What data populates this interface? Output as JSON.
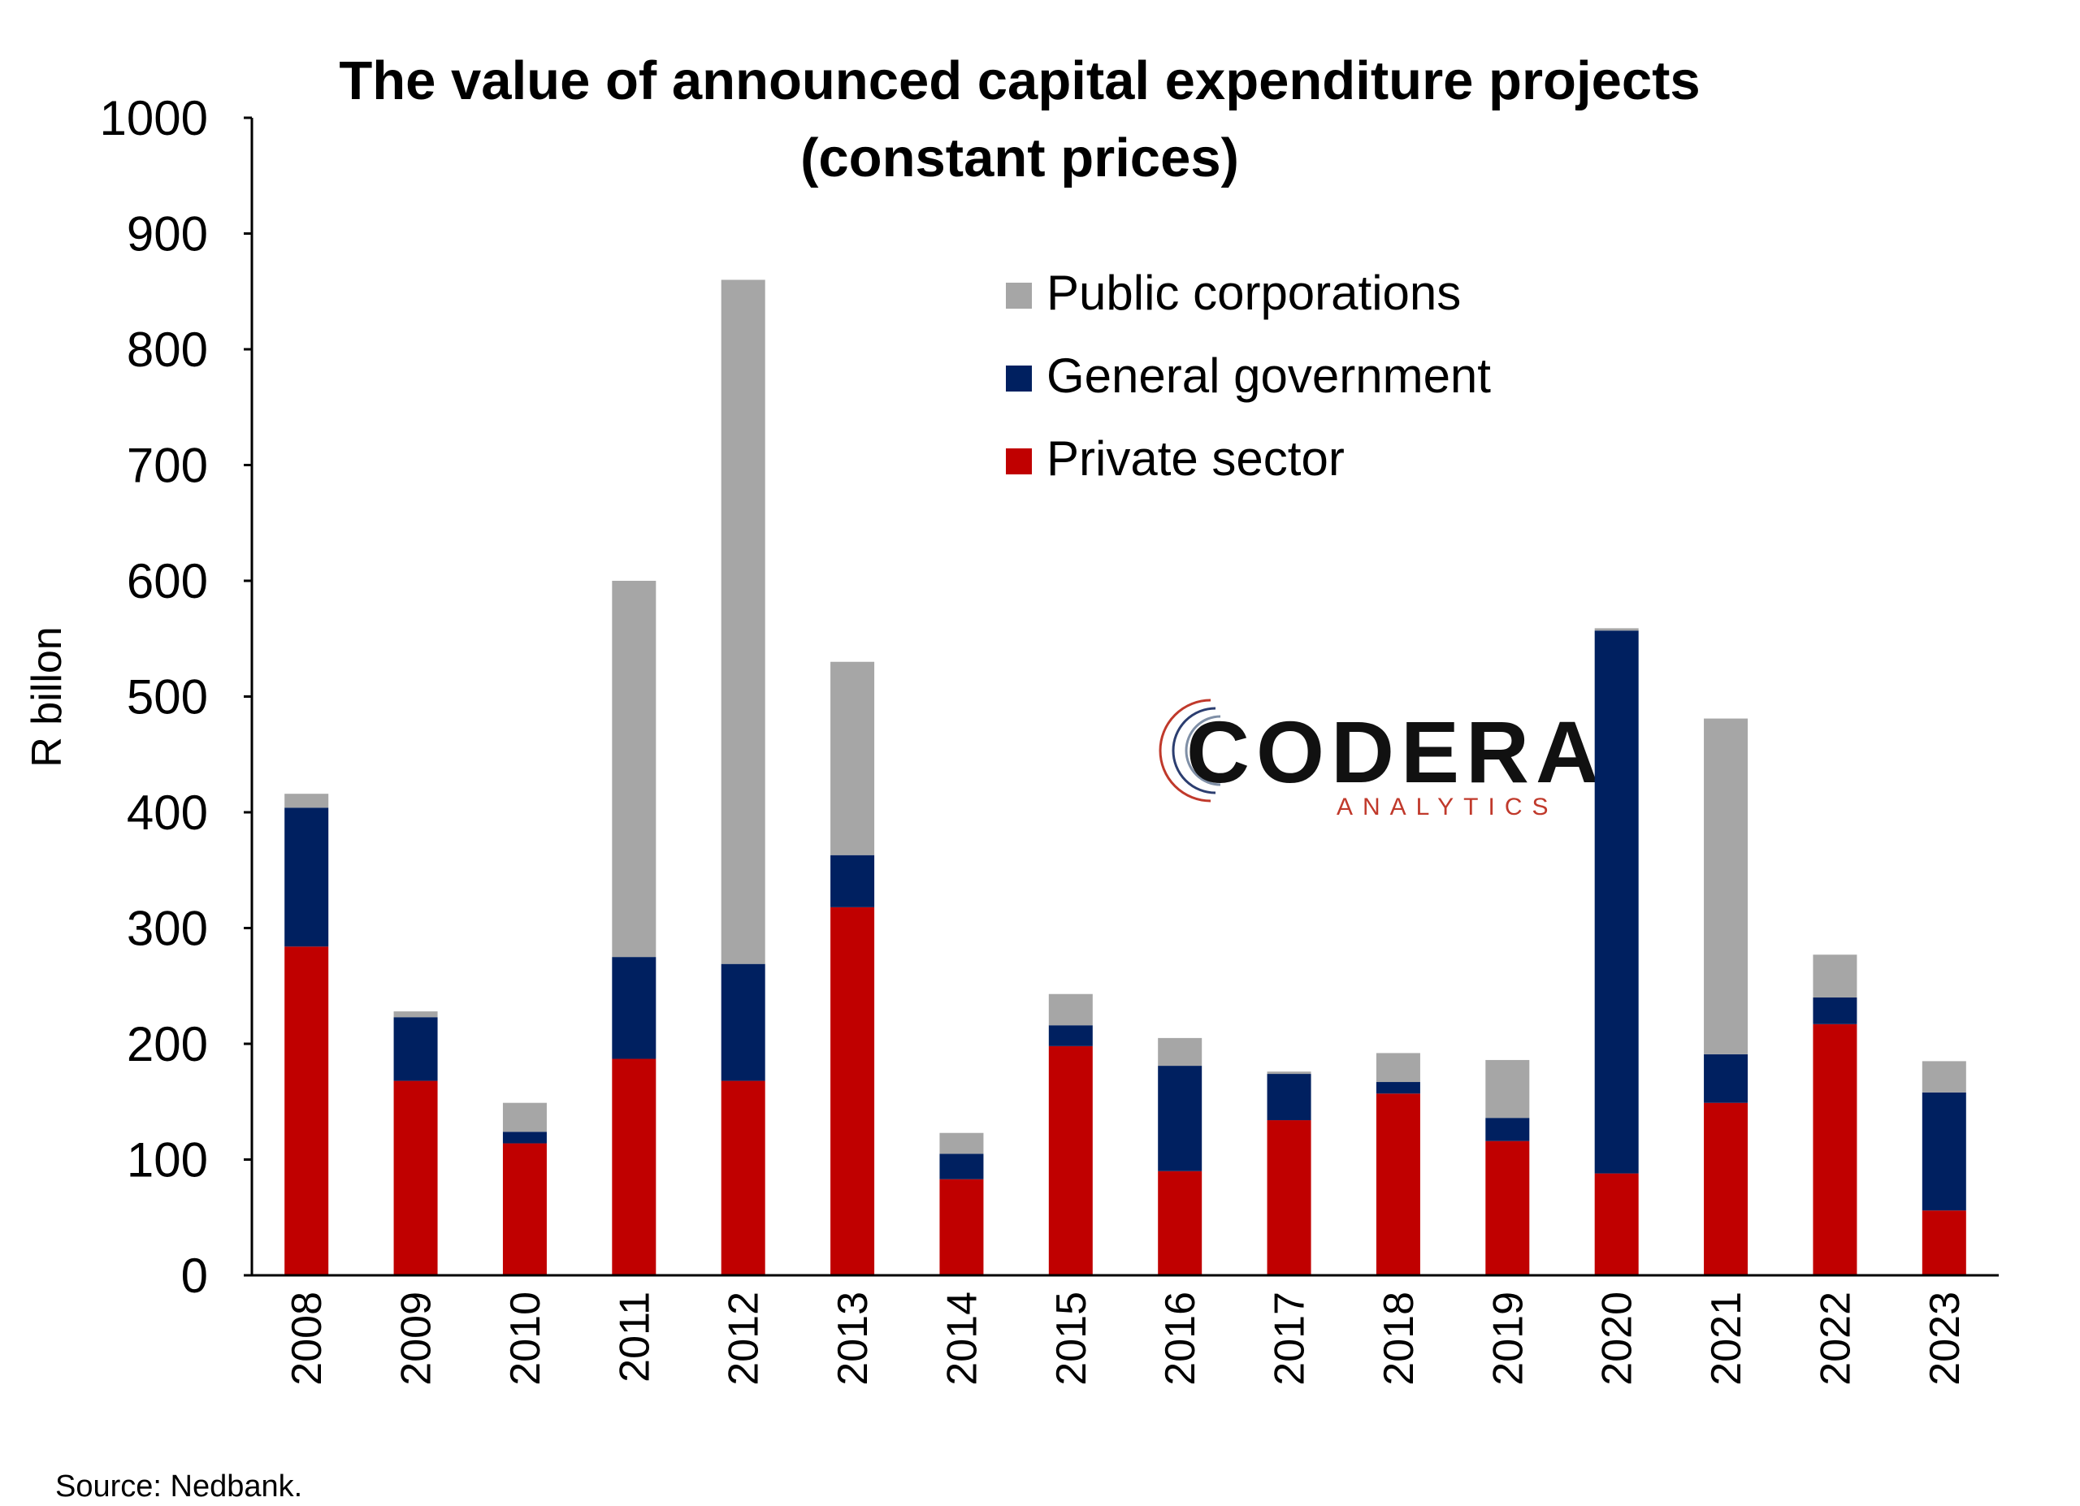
{
  "chart_data": {
    "type": "bar",
    "stacked": true,
    "title_lines": [
      "The value of announced capital expenditure projects",
      "(constant prices)"
    ],
    "ylabel": "R billon",
    "xlabel": "",
    "ylim": [
      0,
      1000
    ],
    "yticks": [
      0,
      100,
      200,
      300,
      400,
      500,
      600,
      700,
      800,
      900,
      1000
    ],
    "categories": [
      "2008",
      "2009",
      "2010",
      "2011",
      "2012",
      "2013",
      "2014",
      "2015",
      "2016",
      "2017",
      "2018",
      "2019",
      "2020",
      "2021",
      "2022",
      "2023"
    ],
    "series": [
      {
        "name": "Private sector",
        "color": "#c00000",
        "values": [
          284,
          168,
          114,
          187,
          168,
          318,
          83,
          198,
          90,
          134,
          157,
          116,
          88,
          149,
          217,
          56
        ]
      },
      {
        "name": "General government",
        "color": "#002060",
        "values": [
          120,
          55,
          10,
          88,
          101,
          45,
          22,
          18,
          91,
          40,
          10,
          20,
          469,
          42,
          23,
          102
        ]
      },
      {
        "name": "Public corporations",
        "color": "#a6a6a6",
        "values": [
          12,
          5,
          25,
          325,
          591,
          167,
          18,
          27,
          24,
          2,
          25,
          50,
          2,
          290,
          37,
          27
        ]
      }
    ],
    "legend_order": [
      "Public corporations",
      "General government",
      "Private sector"
    ],
    "legend_position": "top-center",
    "grid": false,
    "x_tick_rotation": -90
  },
  "watermark": {
    "name": "CODERA",
    "tagline": "ANALYTICS"
  },
  "source_note": "Source: Nedbank."
}
